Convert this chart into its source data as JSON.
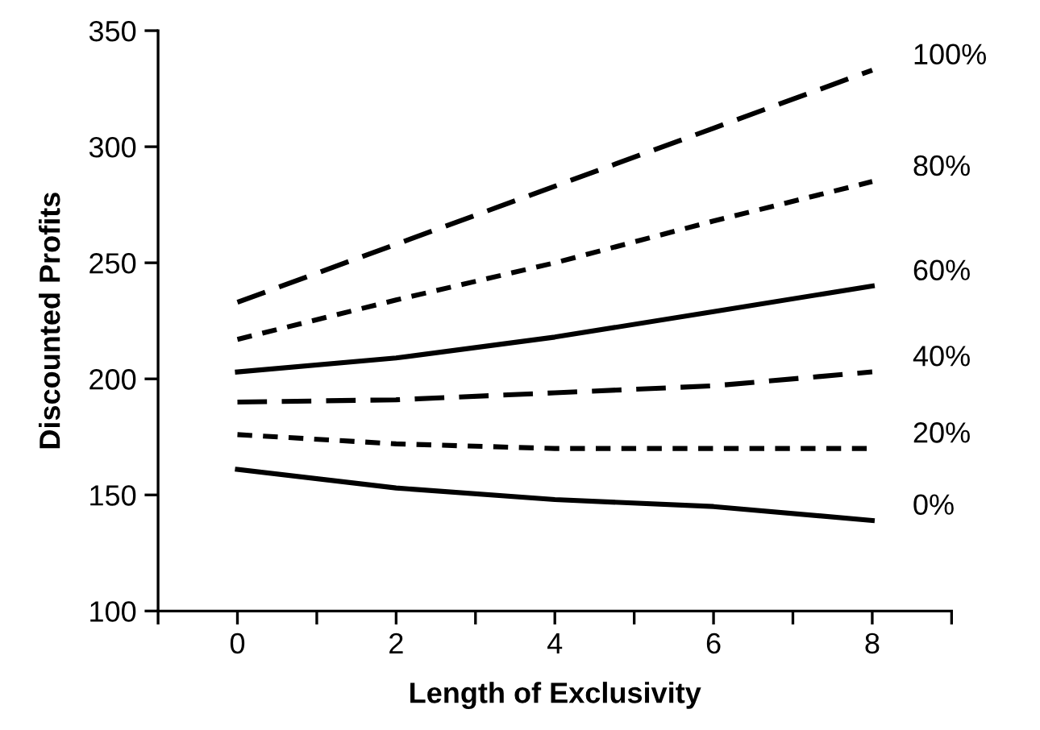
{
  "chart_data": {
    "type": "line",
    "xlabel": "Length of Exclusivity",
    "ylabel": "Discounted Profits",
    "x": [
      0,
      2,
      4,
      6,
      8
    ],
    "xlim": [
      -1,
      9
    ],
    "xticks": [
      {
        "value": -1,
        "label": null
      },
      0,
      {
        "value": 1,
        "label": null
      },
      2,
      {
        "value": 3,
        "label": null
      },
      4,
      {
        "value": 5,
        "label": null
      },
      6,
      {
        "value": 7,
        "label": null
      },
      8,
      {
        "value": 9,
        "label": null
      }
    ],
    "ylim": [
      100,
      350
    ],
    "yticks": [
      100,
      150,
      200,
      250,
      300,
      350
    ],
    "grid": false,
    "legend": false,
    "marker": "none",
    "series": [
      {
        "name": "100%",
        "color": "#000000",
        "line_style": "dashed",
        "values": [
          233,
          258,
          283,
          308,
          333
        ]
      },
      {
        "name": "80%",
        "color": "#000000",
        "line_style": "dotted",
        "values": [
          217,
          234,
          250,
          268,
          285
        ]
      },
      {
        "name": "60%",
        "color": "#000000",
        "line_style": "solid",
        "values": [
          203,
          209,
          218,
          229,
          240
        ]
      },
      {
        "name": "40%",
        "color": "#000000",
        "line_style": "dashed",
        "values": [
          190,
          191,
          194,
          197,
          203
        ]
      },
      {
        "name": "20%",
        "color": "#000000",
        "line_style": "dotted",
        "values": [
          176,
          172,
          170,
          170,
          170
        ]
      },
      {
        "name": "0%",
        "color": "#000000",
        "line_style": "solid",
        "values": [
          161,
          153,
          148,
          145,
          139
        ]
      }
    ]
  }
}
